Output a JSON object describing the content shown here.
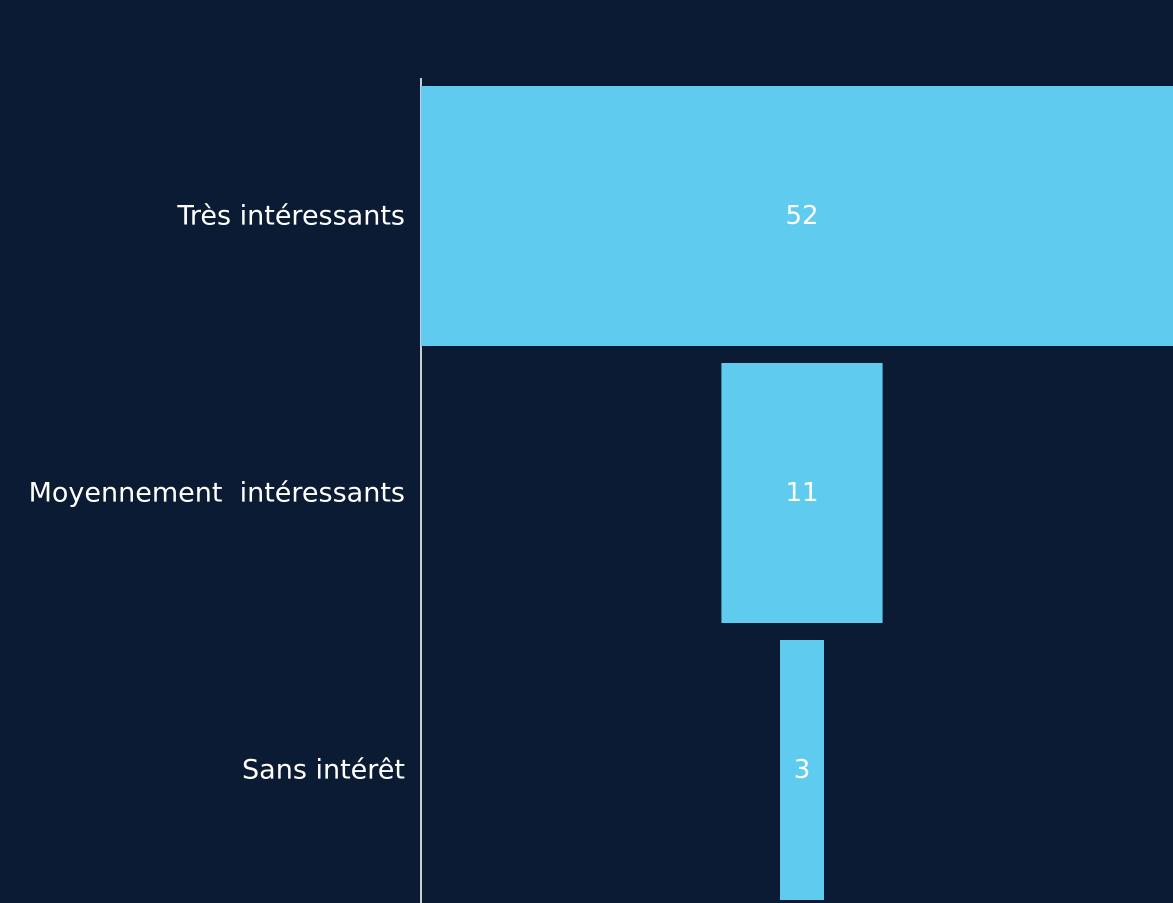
{
  "chart_data": {
    "type": "bar",
    "orientation": "horizontal",
    "style": "funnel",
    "categories": [
      "Très intéressants",
      "Moyennement  intéressants",
      "Sans intérêt"
    ],
    "values": [
      52,
      11,
      3
    ],
    "value_labels": [
      "52",
      "11",
      "3"
    ],
    "title": "",
    "xlabel": "",
    "ylabel": "",
    "grid": false,
    "legend": "none",
    "colors": {
      "background": "#0b1b33",
      "bar": "#5ecbef",
      "text": "#ffffff",
      "axis": "#c8cdd4"
    }
  }
}
